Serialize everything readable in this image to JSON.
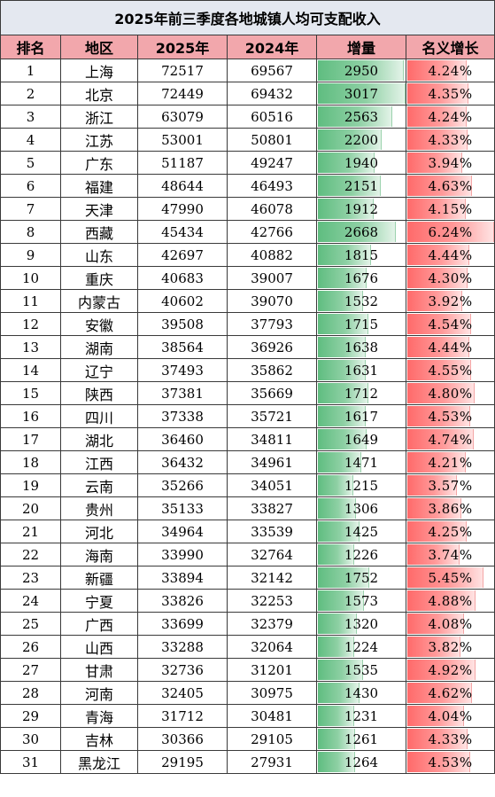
{
  "title": "2025年前三季度各地城镇人均可支配收入",
  "headers": [
    "排名",
    "地区",
    "2025年",
    "2024年",
    "增量",
    "名义增长"
  ],
  "rows": [
    {
      "rank": "1",
      "region": "上海",
      "y2025": "72517",
      "y2024": "69567",
      "increase": "2950",
      "growth": "4.24%"
    },
    {
      "rank": "2",
      "region": "北京",
      "y2025": "72449",
      "y2024": "69432",
      "increase": "3017",
      "growth": "4.35%"
    },
    {
      "rank": "3",
      "region": "浙江",
      "y2025": "63079",
      "y2024": "60516",
      "increase": "2563",
      "growth": "4.24%"
    },
    {
      "rank": "4",
      "region": "江苏",
      "y2025": "53001",
      "y2024": "50801",
      "increase": "2200",
      "growth": "4.33%"
    },
    {
      "rank": "5",
      "region": "广东",
      "y2025": "51187",
      "y2024": "49247",
      "increase": "1940",
      "growth": "3.94%"
    },
    {
      "rank": "6",
      "region": "福建",
      "y2025": "48644",
      "y2024": "46493",
      "increase": "2151",
      "growth": "4.63%"
    },
    {
      "rank": "7",
      "region": "天津",
      "y2025": "47990",
      "y2024": "46078",
      "increase": "1912",
      "growth": "4.15%"
    },
    {
      "rank": "8",
      "region": "西藏",
      "y2025": "45434",
      "y2024": "42766",
      "increase": "2668",
      "growth": "6.24%"
    },
    {
      "rank": "9",
      "region": "山东",
      "y2025": "42697",
      "y2024": "40882",
      "increase": "1815",
      "growth": "4.44%"
    },
    {
      "rank": "10",
      "region": "重庆",
      "y2025": "40683",
      "y2024": "39007",
      "increase": "1676",
      "growth": "4.30%"
    },
    {
      "rank": "11",
      "region": "内蒙古",
      "y2025": "40602",
      "y2024": "39070",
      "increase": "1532",
      "growth": "3.92%"
    },
    {
      "rank": "12",
      "region": "安徽",
      "y2025": "39508",
      "y2024": "37793",
      "increase": "1715",
      "growth": "4.54%"
    },
    {
      "rank": "13",
      "region": "湖南",
      "y2025": "38564",
      "y2024": "36926",
      "increase": "1638",
      "growth": "4.44%"
    },
    {
      "rank": "14",
      "region": "辽宁",
      "y2025": "37493",
      "y2024": "35862",
      "increase": "1631",
      "growth": "4.55%"
    },
    {
      "rank": "15",
      "region": "陕西",
      "y2025": "37381",
      "y2024": "35669",
      "increase": "1712",
      "growth": "4.80%"
    },
    {
      "rank": "16",
      "region": "四川",
      "y2025": "37338",
      "y2024": "35721",
      "increase": "1617",
      "growth": "4.53%"
    },
    {
      "rank": "17",
      "region": "湖北",
      "y2025": "36460",
      "y2024": "34811",
      "increase": "1649",
      "growth": "4.74%"
    },
    {
      "rank": "18",
      "region": "江西",
      "y2025": "36432",
      "y2024": "34961",
      "increase": "1471",
      "growth": "4.21%"
    },
    {
      "rank": "19",
      "region": "云南",
      "y2025": "35266",
      "y2024": "34051",
      "increase": "1215",
      "growth": "3.57%"
    },
    {
      "rank": "20",
      "region": "贵州",
      "y2025": "35133",
      "y2024": "33827",
      "increase": "1306",
      "growth": "3.86%"
    },
    {
      "rank": "21",
      "region": "河北",
      "y2025": "34964",
      "y2024": "33539",
      "increase": "1425",
      "growth": "4.25%"
    },
    {
      "rank": "22",
      "region": "海南",
      "y2025": "33990",
      "y2024": "32764",
      "increase": "1226",
      "growth": "3.74%"
    },
    {
      "rank": "23",
      "region": "新疆",
      "y2025": "33894",
      "y2024": "32142",
      "increase": "1752",
      "growth": "5.45%"
    },
    {
      "rank": "24",
      "region": "宁夏",
      "y2025": "33826",
      "y2024": "32253",
      "increase": "1573",
      "growth": "4.88%"
    },
    {
      "rank": "25",
      "region": "广西",
      "y2025": "33699",
      "y2024": "32379",
      "increase": "1320",
      "growth": "4.08%"
    },
    {
      "rank": "26",
      "region": "山西",
      "y2025": "33288",
      "y2024": "32064",
      "increase": "1224",
      "growth": "3.82%"
    },
    {
      "rank": "27",
      "region": "甘肃",
      "y2025": "32736",
      "y2024": "31201",
      "increase": "1535",
      "growth": "4.92%"
    },
    {
      "rank": "28",
      "region": "河南",
      "y2025": "32405",
      "y2024": "30975",
      "increase": "1430",
      "growth": "4.62%"
    },
    {
      "rank": "29",
      "region": "青海",
      "y2025": "31712",
      "y2024": "30481",
      "increase": "1231",
      "growth": "4.04%"
    },
    {
      "rank": "30",
      "region": "吉林",
      "y2025": "30366",
      "y2024": "29105",
      "increase": "1261",
      "growth": "4.33%"
    },
    {
      "rank": "31",
      "region": "黑龙江",
      "y2025": "29195",
      "y2024": "27931",
      "increase": "1264",
      "growth": "4.53%"
    }
  ],
  "colors": {
    "title_bg": "#e4e8f0",
    "header_bg": "#f2a7ac",
    "increase_bar": "#5fbd80",
    "growth_bar": "#ff6a6a"
  }
}
